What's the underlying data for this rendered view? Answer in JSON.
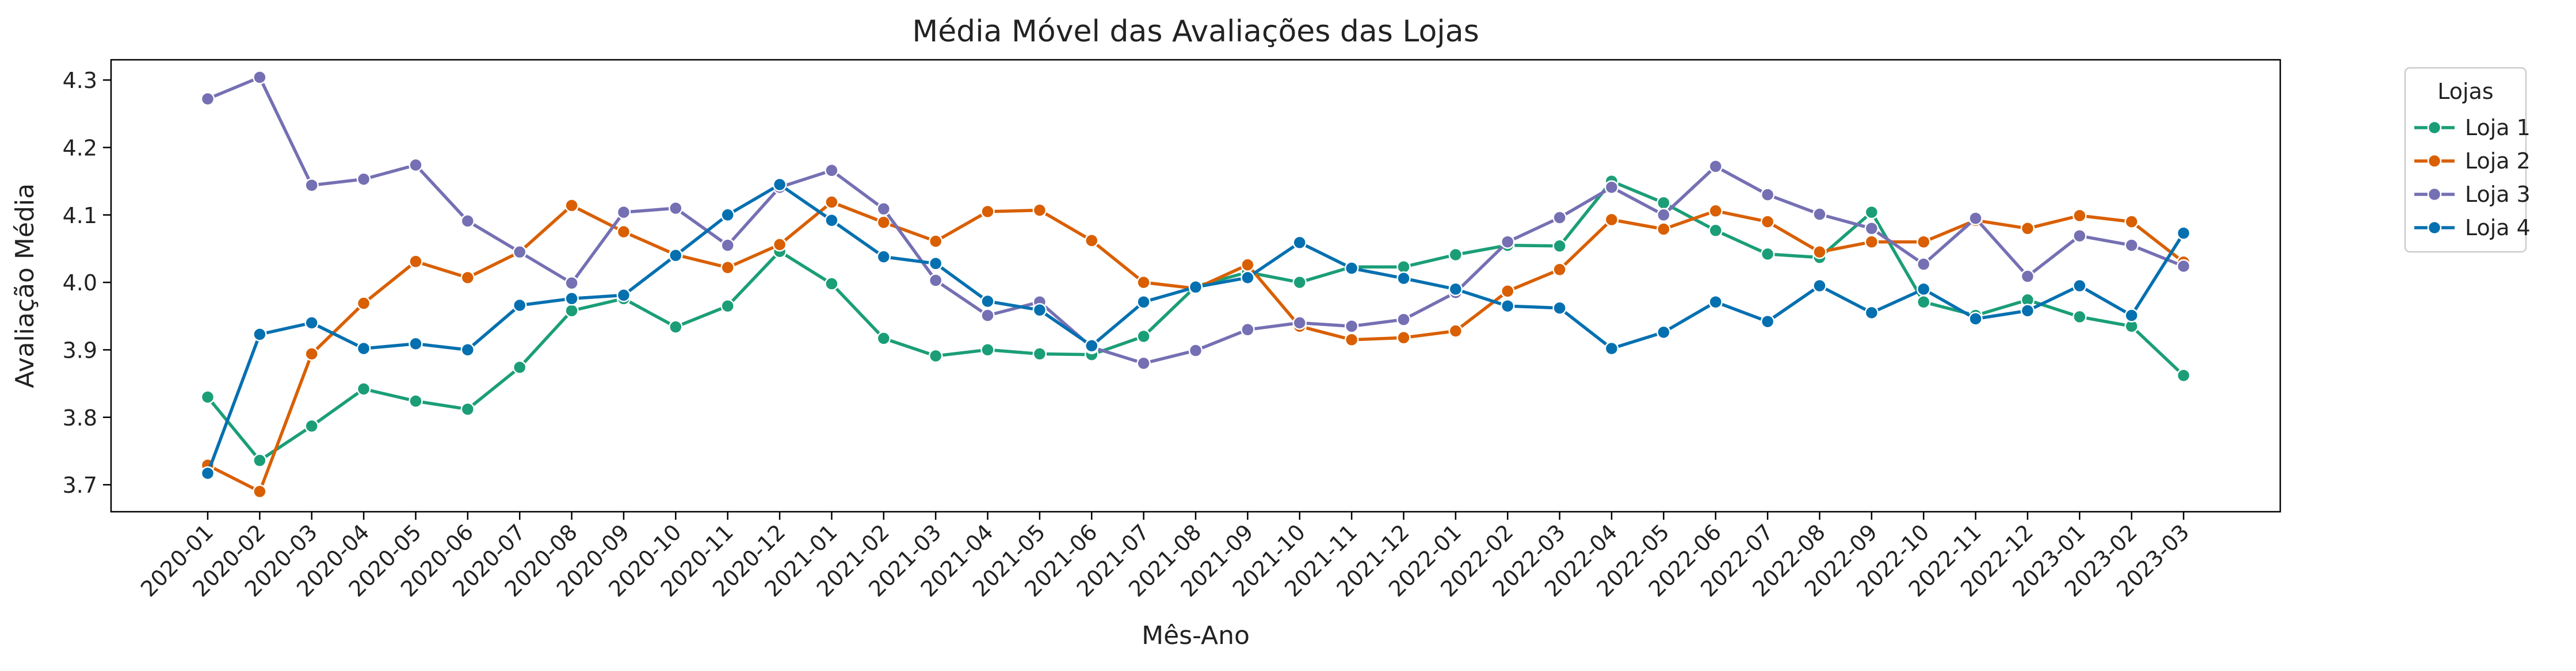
{
  "chart_data": {
    "type": "line",
    "title": "Média Móvel das Avaliações das Lojas",
    "xlabel": "Mês-Ano",
    "ylabel": "Avaliação Média",
    "categories": [
      "2020-01",
      "2020-02",
      "2020-03",
      "2020-04",
      "2020-05",
      "2020-06",
      "2020-07",
      "2020-08",
      "2020-09",
      "2020-10",
      "2020-11",
      "2020-12",
      "2021-01",
      "2021-02",
      "2021-03",
      "2021-04",
      "2021-05",
      "2021-06",
      "2021-07",
      "2021-08",
      "2021-09",
      "2021-10",
      "2021-11",
      "2021-12",
      "2022-01",
      "2022-02",
      "2022-03",
      "2022-04",
      "2022-05",
      "2022-06",
      "2022-07",
      "2022-08",
      "2022-09",
      "2022-10",
      "2022-11",
      "2022-12",
      "2023-01",
      "2023-02",
      "2023-03"
    ],
    "ylim": [
      3.66,
      4.33
    ],
    "yticks": [
      "3.7",
      "3.8",
      "3.9",
      "4.0",
      "4.1",
      "4.2",
      "4.3"
    ],
    "grid": false,
    "legend": {
      "title": "Lojas",
      "placement": "outside-right-top"
    },
    "series": [
      {
        "name": "Loja 1",
        "color": "#1b9e77",
        "values": [
          3.83,
          3.736,
          3.787,
          3.842,
          3.824,
          3.812,
          3.874,
          3.958,
          3.976,
          3.934,
          3.965,
          4.046,
          3.998,
          3.917,
          3.891,
          3.9,
          3.894,
          3.893,
          3.92,
          3.994,
          4.015,
          4.0,
          4.023,
          4.023,
          4.041,
          4.055,
          4.054,
          4.15,
          4.118,
          4.077,
          4.042,
          4.037,
          4.104,
          3.971,
          3.951,
          3.974,
          3.949,
          3.935,
          3.862
        ]
      },
      {
        "name": "Loja 2",
        "color": "#d95f02",
        "values": [
          3.729,
          3.69,
          3.894,
          3.969,
          4.031,
          4.007,
          4.045,
          4.114,
          4.075,
          4.041,
          4.022,
          4.056,
          4.119,
          4.089,
          4.061,
          4.105,
          4.107,
          4.062,
          4.0,
          3.991,
          4.026,
          3.935,
          3.915,
          3.918,
          3.928,
          3.987,
          4.019,
          4.093,
          4.079,
          4.106,
          4.09,
          4.045,
          4.06,
          4.06,
          4.092,
          4.08,
          4.099,
          4.09,
          4.03
        ]
      },
      {
        "name": "Loja 3",
        "color": "#7570b3",
        "values": [
          4.272,
          4.304,
          4.144,
          4.153,
          4.174,
          4.091,
          4.045,
          3.999,
          4.104,
          4.11,
          4.055,
          4.141,
          4.166,
          4.109,
          4.003,
          3.951,
          3.971,
          3.904,
          3.88,
          3.899,
          3.93,
          3.94,
          3.935,
          3.945,
          3.985,
          4.06,
          4.096,
          4.141,
          4.1,
          4.172,
          4.13,
          4.101,
          4.08,
          4.027,
          4.095,
          4.009,
          4.069,
          4.055,
          4.024
        ]
      },
      {
        "name": "Loja 4",
        "color": "#0570b0",
        "values": [
          3.717,
          3.923,
          3.94,
          3.902,
          3.909,
          3.9,
          3.966,
          3.976,
          3.981,
          4.04,
          4.1,
          4.145,
          4.092,
          4.038,
          4.028,
          3.972,
          3.959,
          3.906,
          3.971,
          3.993,
          4.007,
          4.059,
          4.021,
          4.006,
          3.99,
          3.965,
          3.962,
          3.902,
          3.926,
          3.971,
          3.942,
          3.995,
          3.955,
          3.99,
          3.946,
          3.958,
          3.995,
          3.951,
          4.073
        ]
      }
    ]
  }
}
